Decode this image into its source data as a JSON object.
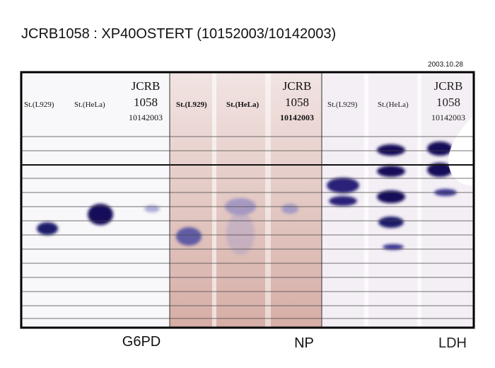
{
  "header": {
    "title": "JCRB1058 : XP40OSTERT (10152003/10142003)",
    "date": "2003.10.28"
  },
  "panels": [
    {
      "lanes": [
        "St.(L929)",
        "St.(HeLa)"
      ],
      "sample": [
        "JCRB",
        "1058",
        "10142003"
      ],
      "label": "G6PD"
    },
    {
      "lanes": [
        "St.(L929)",
        "St.(HeLa)"
      ],
      "sample": [
        "JCRB",
        "1058",
        "10142003"
      ],
      "label": "NP"
    },
    {
      "lanes": [
        "St.(L929)",
        "St.(HeLa)"
      ],
      "sample": [
        "JCRB",
        "1058",
        "10142003"
      ],
      "label": "LDH"
    }
  ]
}
